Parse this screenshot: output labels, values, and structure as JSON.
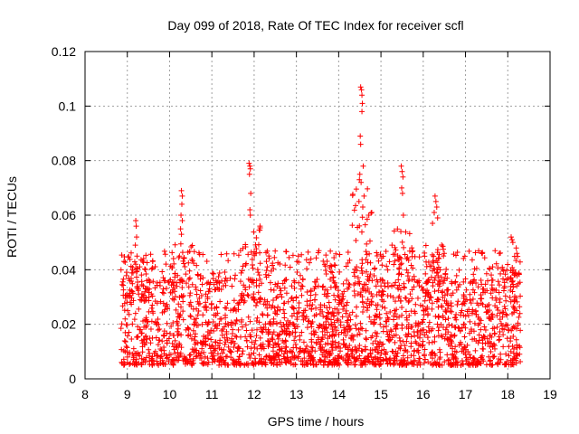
{
  "chart_data": {
    "type": "scatter",
    "title": "Day 099 of 2018, Rate Of TEC Index for receiver scfl",
    "xlabel": "GPS time / hours",
    "ylabel": "ROTI / TECUs",
    "xlim": [
      8,
      19
    ],
    "ylim": [
      0,
      0.12
    ],
    "x_ticks": [
      8,
      9,
      10,
      11,
      12,
      13,
      14,
      15,
      16,
      17,
      18,
      19
    ],
    "x_tick_labels": [
      "8",
      "9",
      "10",
      "11",
      "12",
      "13",
      "14",
      "15",
      "16",
      "17",
      "18",
      "19"
    ],
    "y_ticks": [
      0,
      0.02,
      0.04,
      0.06,
      0.08,
      0.1,
      0.12
    ],
    "y_tick_labels": [
      "0",
      "0.02",
      "0.04",
      "0.06",
      "0.08",
      "0.1",
      "0.12"
    ],
    "grid": true,
    "marker": "+",
    "marker_color": "#ff0000",
    "data_range_x": [
      8.85,
      18.3
    ],
    "series": [
      {
        "name": "ROTI",
        "color": "#ff0000",
        "baseline_band": [
          0.005,
          0.035
        ],
        "peaks": [
          {
            "x": 9.2,
            "y": 0.058
          },
          {
            "x": 10.3,
            "y": 0.069
          },
          {
            "x": 11.9,
            "y": 0.079
          },
          {
            "x": 14.55,
            "y": 0.107
          },
          {
            "x": 15.5,
            "y": 0.078
          },
          {
            "x": 16.3,
            "y": 0.067
          },
          {
            "x": 18.1,
            "y": 0.052
          }
        ],
        "points": [
          [
            9.2,
            0.058
          ],
          [
            9.21,
            0.056
          ],
          [
            9.22,
            0.052
          ],
          [
            9.19,
            0.049
          ],
          [
            9.23,
            0.045
          ],
          [
            9.2,
            0.042
          ],
          [
            10.28,
            0.069
          ],
          [
            10.3,
            0.067
          ],
          [
            10.29,
            0.064
          ],
          [
            10.27,
            0.06
          ],
          [
            10.3,
            0.058
          ],
          [
            10.26,
            0.055
          ],
          [
            10.28,
            0.053
          ],
          [
            11.88,
            0.079
          ],
          [
            11.9,
            0.078
          ],
          [
            11.91,
            0.077
          ],
          [
            11.89,
            0.075
          ],
          [
            11.92,
            0.068
          ],
          [
            11.9,
            0.062
          ],
          [
            11.91,
            0.06
          ],
          [
            14.52,
            0.107
          ],
          [
            14.54,
            0.106
          ],
          [
            14.55,
            0.104
          ],
          [
            14.56,
            0.101
          ],
          [
            14.55,
            0.098
          ],
          [
            14.51,
            0.089
          ],
          [
            14.52,
            0.086
          ],
          [
            14.58,
            0.078
          ],
          [
            14.5,
            0.075
          ],
          [
            14.49,
            0.073
          ],
          [
            14.53,
            0.072
          ],
          [
            14.6,
            0.067
          ],
          [
            14.48,
            0.065
          ],
          [
            14.57,
            0.063
          ],
          [
            15.48,
            0.078
          ],
          [
            15.5,
            0.076
          ],
          [
            15.52,
            0.074
          ],
          [
            15.49,
            0.07
          ],
          [
            15.51,
            0.068
          ],
          [
            15.53,
            0.06
          ],
          [
            15.47,
            0.054
          ],
          [
            16.28,
            0.067
          ],
          [
            16.3,
            0.065
          ],
          [
            16.32,
            0.063
          ],
          [
            16.26,
            0.061
          ],
          [
            16.34,
            0.059
          ],
          [
            16.22,
            0.057
          ],
          [
            18.08,
            0.052
          ],
          [
            18.1,
            0.051
          ],
          [
            18.12,
            0.05
          ],
          [
            18.2,
            0.048
          ],
          [
            17.7,
            0.047
          ],
          [
            17.8,
            0.046
          ]
        ]
      }
    ]
  }
}
